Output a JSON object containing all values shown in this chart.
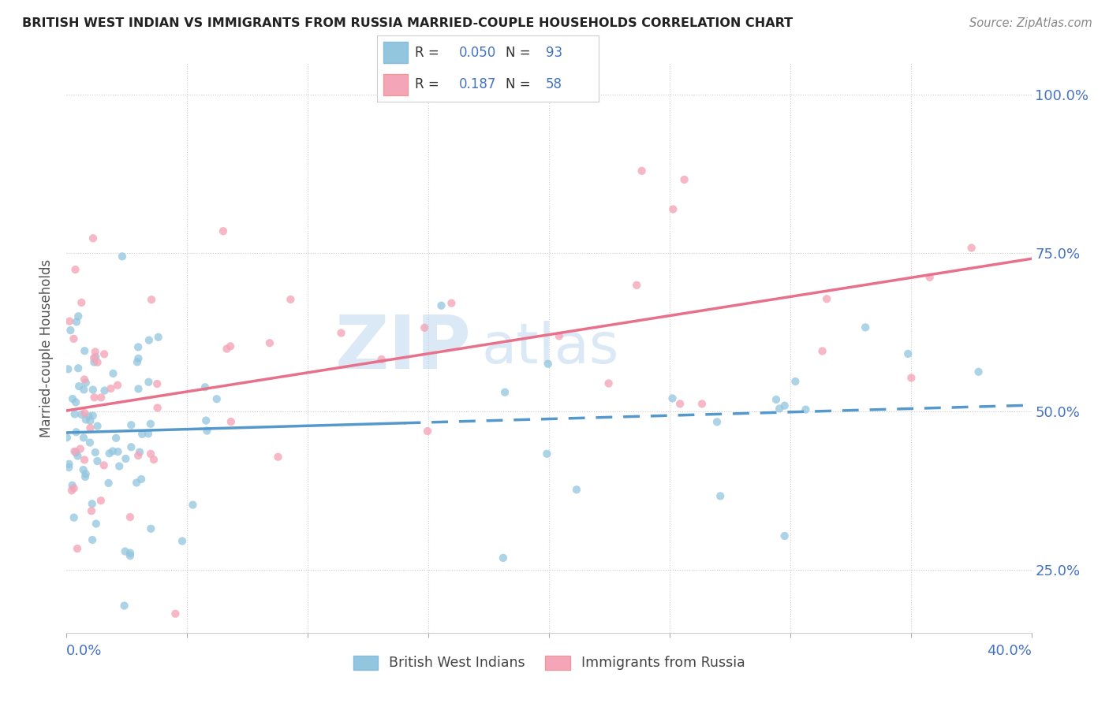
{
  "title": "BRITISH WEST INDIAN VS IMMIGRANTS FROM RUSSIA MARRIED-COUPLE HOUSEHOLDS CORRELATION CHART",
  "source": "Source: ZipAtlas.com",
  "ylabel": "Married-couple Households",
  "series1_label": "British West Indians",
  "series1_color": "#92c5de",
  "series1_line_color": "#5599cc",
  "series2_label": "Immigrants from Russia",
  "series2_color": "#f4a6b8",
  "series2_line_color": "#e8708a",
  "watermark_part1": "ZIP",
  "watermark_part2": "atlas",
  "blue_color": "#4472c4",
  "background_color": "#ffffff",
  "grid_color": "#cccccc",
  "xlim": [
    0.0,
    0.4
  ],
  "ylim": [
    0.15,
    1.05
  ],
  "ytick_vals": [
    0.25,
    0.5,
    0.75,
    1.0
  ],
  "ytick_labels": [
    "25.0%",
    "50.0%",
    "75.0%",
    "100.0%"
  ],
  "legend_r1": "0.050",
  "legend_n1": "93",
  "legend_r2": "0.187",
  "legend_n2": "58",
  "seed": 12345,
  "n1": 93,
  "n2": 58
}
